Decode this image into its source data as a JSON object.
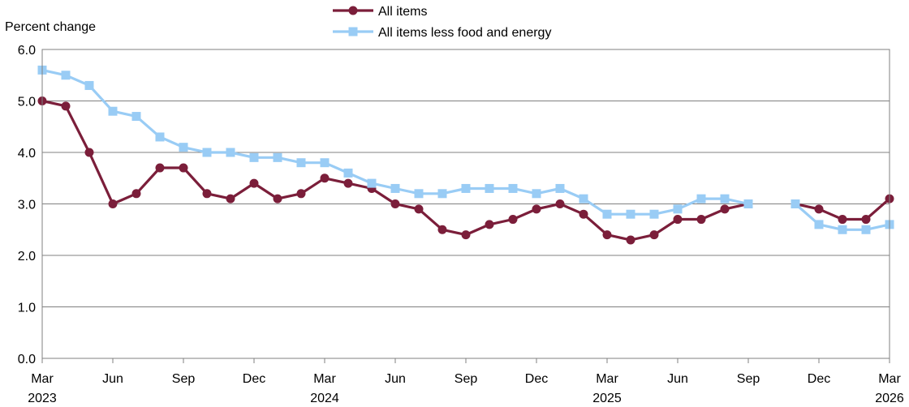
{
  "chart_data": {
    "type": "line",
    "ylabel": "Percent change",
    "ylim": [
      0,
      6
    ],
    "yticks": [
      "0.0",
      "1.0",
      "2.0",
      "3.0",
      "4.0",
      "5.0",
      "6.0"
    ],
    "grid": true,
    "legend_position": "top-center",
    "x": [
      "2023-03",
      "2023-04",
      "2023-05",
      "2023-06",
      "2023-07",
      "2023-08",
      "2023-09",
      "2023-10",
      "2023-11",
      "2023-12",
      "2024-01",
      "2024-02",
      "2024-03",
      "2024-04",
      "2024-05",
      "2024-06",
      "2024-07",
      "2024-08",
      "2024-09",
      "2024-10",
      "2024-11",
      "2024-12",
      "2025-01",
      "2025-02",
      "2025-03",
      "2025-04",
      "2025-05",
      "2025-06",
      "2025-07",
      "2025-08",
      "2025-09",
      "2025-10",
      "2025-11",
      "2025-12",
      "2026-01",
      "2026-02",
      "2026-03"
    ],
    "xtick_labels": [
      {
        "month": "Mar",
        "year": "2023",
        "index": 0
      },
      {
        "month": "Jun",
        "year": "",
        "index": 3
      },
      {
        "month": "Sep",
        "year": "",
        "index": 6
      },
      {
        "month": "Dec",
        "year": "",
        "index": 9
      },
      {
        "month": "Mar",
        "year": "2024",
        "index": 12
      },
      {
        "month": "Jun",
        "year": "",
        "index": 15
      },
      {
        "month": "Sep",
        "year": "",
        "index": 18
      },
      {
        "month": "Dec",
        "year": "",
        "index": 21
      },
      {
        "month": "Mar",
        "year": "2025",
        "index": 24
      },
      {
        "month": "Jun",
        "year": "",
        "index": 27
      },
      {
        "month": "Sep",
        "year": "",
        "index": 30
      },
      {
        "month": "Dec",
        "year": "",
        "index": 33
      },
      {
        "month": "Mar",
        "year": "2026",
        "index": 36
      }
    ],
    "series": [
      {
        "name": "All items",
        "color": "#7b1e3a",
        "marker": "circle",
        "values": [
          5.0,
          4.9,
          4.0,
          3.0,
          3.2,
          3.7,
          3.7,
          3.2,
          3.1,
          3.4,
          3.1,
          3.2,
          3.5,
          3.4,
          3.3,
          3.0,
          2.9,
          2.5,
          2.4,
          2.6,
          2.7,
          2.9,
          3.0,
          2.8,
          2.4,
          2.3,
          2.4,
          2.7,
          2.7,
          2.9,
          3.0,
          null,
          3.0,
          2.9,
          2.7,
          2.7,
          3.1
        ]
      },
      {
        "name": "All items less food and energy",
        "color": "#99ccf5",
        "marker": "square",
        "values": [
          5.6,
          5.5,
          5.3,
          4.8,
          4.7,
          4.3,
          4.1,
          4.0,
          4.0,
          3.9,
          3.9,
          3.8,
          3.8,
          3.6,
          3.4,
          3.3,
          3.2,
          3.2,
          3.3,
          3.3,
          3.3,
          3.2,
          3.3,
          3.1,
          2.8,
          2.8,
          2.8,
          2.9,
          3.1,
          3.1,
          3.0,
          null,
          3.0,
          2.6,
          2.5,
          2.5,
          2.6
        ]
      }
    ]
  }
}
